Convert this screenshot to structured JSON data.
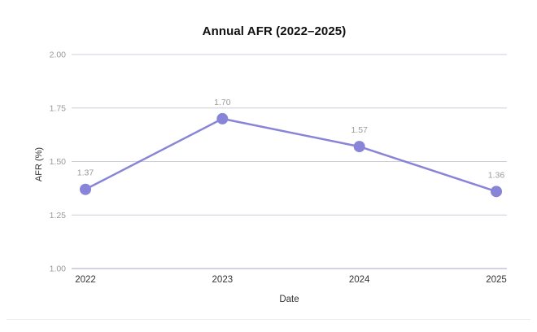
{
  "chart_data": {
    "type": "line",
    "title": "Annual AFR (2022–2025)",
    "xlabel": "Date",
    "ylabel": "AFR (%)",
    "categories": [
      "2022",
      "2023",
      "2024",
      "2025"
    ],
    "series": [
      {
        "name": "AFR",
        "values": [
          1.37,
          1.7,
          1.57,
          1.36
        ],
        "point_labels": [
          "1.37",
          "1.70",
          "1.57",
          "1.36"
        ]
      }
    ],
    "ylim": [
      1.0,
      2.0
    ],
    "yticks": [
      1.0,
      1.25,
      1.5,
      1.75,
      2.0
    ],
    "ytick_labels": [
      "1.00",
      "1.25",
      "1.50",
      "1.75",
      "2.00"
    ],
    "grid": true,
    "legend": "none",
    "colors": {
      "line": "#8884d8",
      "marker": "#8884d8",
      "grid": "#cdcdd9",
      "axis_line": "#a5a5c7",
      "y_tick_label": "#999999",
      "x_tick_label": "#333333",
      "data_label": "#9b9b9b",
      "title": "#111111",
      "axis_title": "#333333",
      "background": "#ffffff"
    }
  }
}
